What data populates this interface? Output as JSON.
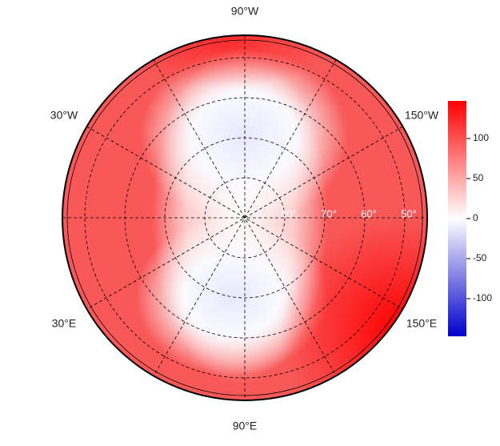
{
  "map": {
    "longitude_labels": [
      "90°W",
      "30°W",
      "150°W",
      "30°E",
      "150°E",
      "90°E"
    ],
    "latitude_labels": [
      "80°",
      "70°",
      "60°",
      "50°"
    ],
    "colorbar": {
      "lim": [
        -147,
        147
      ],
      "ticks": [
        -100,
        -50,
        0,
        50,
        100
      ]
    }
  }
}
